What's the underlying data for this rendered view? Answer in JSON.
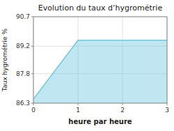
{
  "chart_data": {
    "type": "area",
    "title": "Evolution du taux d’hygrométrie",
    "xlabel": "heure par heure",
    "ylabel": "Taux hygrométrie %",
    "x": [
      0,
      1,
      3
    ],
    "values": [
      86.5,
      89.5,
      89.5
    ],
    "color": "#70c8e0",
    "xlim": [
      0,
      3
    ],
    "ylim": [
      86.3,
      90.7
    ],
    "xticks": [
      0,
      1,
      2,
      3
    ],
    "yticks": [
      86.3,
      87.8,
      89.2,
      90.7
    ],
    "grid": true
  }
}
